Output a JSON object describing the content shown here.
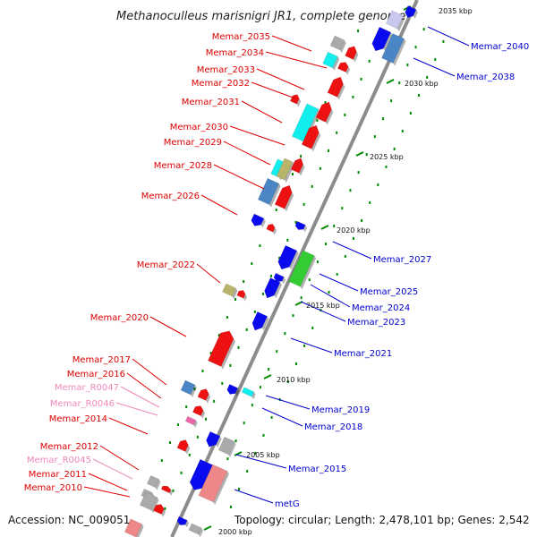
{
  "title": "Methanoculleus marisnigri JR1, complete genome",
  "footer": {
    "accession": "Accession: NC_009051",
    "topology": "Topology: circular; Length: 2,478,101 bp; Genes: 2,542"
  },
  "colors": {
    "backbone": "#8c8c8c",
    "left_label": "#dd0000",
    "right_label": "#0000cc",
    "pseudo_label": "#ee88bb",
    "tick": "#008800"
  },
  "scale_marks": [
    "2035 kbp",
    "2030 kbp",
    "2025 kbp",
    "2020 kbp",
    "2015 kbp",
    "2010 kbp",
    "2005 kbp",
    "2000 kbp"
  ],
  "left_labels": [
    "Memar_2035",
    "Memar_2034",
    "Memar_2033",
    "Memar_2032",
    "Memar_2031",
    "Memar_2030",
    "Memar_2029",
    "Memar_2028",
    "Memar_2026",
    "Memar_2022",
    "Memar_2020",
    "Memar_2017",
    "Memar_2016",
    "Memar_R0047",
    "Memar_R0046",
    "Memar_2014",
    "Memar_2012",
    "Memar_R0045",
    "Memar_2011",
    "Memar_2010"
  ],
  "right_labels": [
    "Memar_2040",
    "Memar_2038",
    "Memar_2027",
    "Memar_2025",
    "Memar_2024",
    "Memar_2023",
    "Memar_2021",
    "Memar_2019",
    "Memar_2018",
    "Memar_2015",
    "metG"
  ],
  "feature_colors": [
    "red",
    "grey",
    "cyan",
    "steelblue",
    "blue",
    "green",
    "olive",
    "lightred",
    "pink",
    "lavender"
  ]
}
